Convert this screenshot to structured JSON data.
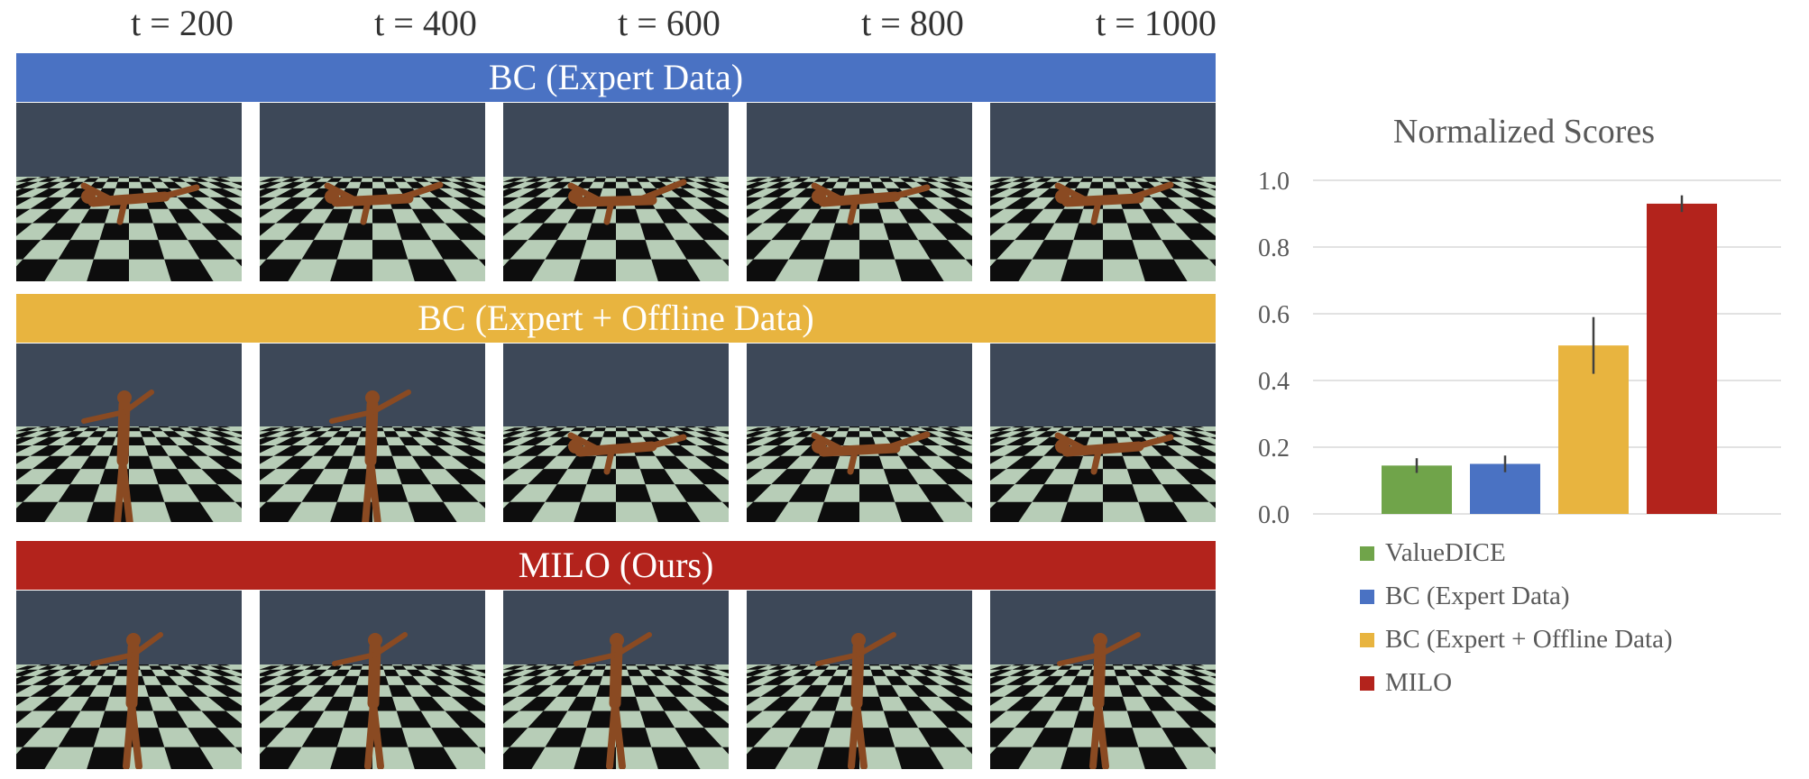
{
  "time_labels": [
    "t = 200",
    "t = 400",
    "t = 600",
    "t = 800",
    "t = 1000"
  ],
  "rows": [
    {
      "label": "BC (Expert Data)",
      "color": "#4a72c3",
      "pose": "fallen"
    },
    {
      "label": "BC (Expert + Offline Data)",
      "color": "#e8b43f",
      "pose": "mixed"
    },
    {
      "label": "MILO (Ours)",
      "color": "#b3231c",
      "pose": "standing"
    }
  ],
  "chart_data": {
    "type": "bar",
    "title": "Normalized Scores",
    "categories": [
      "ValueDICE",
      "BC (Expert Data)",
      "BC (Expert + Offline Data)",
      "MILO"
    ],
    "values": [
      0.145,
      0.15,
      0.505,
      0.93
    ],
    "error": [
      0.022,
      0.025,
      0.085,
      0.025
    ],
    "colors": [
      "#70a44a",
      "#4a72c3",
      "#e8b43f",
      "#b3231c"
    ],
    "ylim": [
      0,
      1.0
    ],
    "yticks": [
      "0.0",
      "0.2",
      "0.4",
      "0.6",
      "0.8",
      "1.0"
    ],
    "grid": true,
    "legend_position": "bottom"
  }
}
